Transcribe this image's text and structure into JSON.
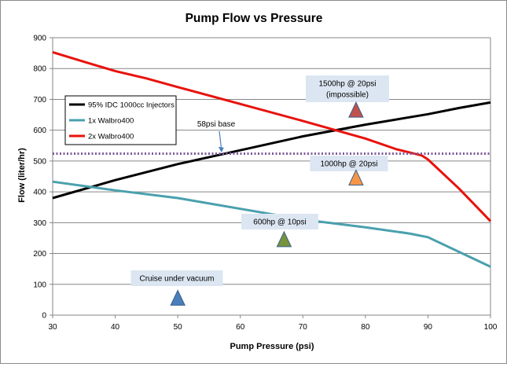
{
  "chart_data": {
    "type": "line",
    "title": "Pump Flow vs Pressure",
    "xlabel": "Pump Pressure (psi)",
    "ylabel": "Flow (liter/hr)",
    "xlim": [
      30,
      100
    ],
    "ylim": [
      0,
      900
    ],
    "x_ticks": [
      "30",
      "40",
      "50",
      "60",
      "70",
      "80",
      "90",
      "100"
    ],
    "y_ticks": [
      "0",
      "100",
      "200",
      "300",
      "400",
      "500",
      "600",
      "700",
      "800",
      "900"
    ],
    "grid": true,
    "legend_position": "top-left",
    "series": [
      {
        "name": "95% IDC 1000cc Injectors",
        "color": "#000000",
        "points": [
          [
            30,
            380
          ],
          [
            40,
            438
          ],
          [
            50,
            490
          ],
          [
            60,
            535
          ],
          [
            70,
            580
          ],
          [
            80,
            618
          ],
          [
            90,
            652
          ],
          [
            95,
            672
          ],
          [
            100,
            690
          ]
        ]
      },
      {
        "name": "1x Walbro400",
        "color": "#4aa0ad",
        "points": [
          [
            30,
            433
          ],
          [
            40,
            405
          ],
          [
            50,
            380
          ],
          [
            60,
            345
          ],
          [
            70,
            310
          ],
          [
            80,
            285
          ],
          [
            87,
            265
          ],
          [
            90,
            253
          ],
          [
            95,
            205
          ],
          [
            100,
            157
          ]
        ]
      },
      {
        "name": "2x Walbro400",
        "color": "#e8120c",
        "points": [
          [
            30,
            853
          ],
          [
            35,
            822
          ],
          [
            40,
            792
          ],
          [
            45,
            768
          ],
          [
            50,
            740
          ],
          [
            60,
            685
          ],
          [
            70,
            630
          ],
          [
            80,
            573
          ],
          [
            85,
            538
          ],
          [
            89,
            518
          ],
          [
            90,
            505
          ],
          [
            95,
            410
          ],
          [
            100,
            305
          ]
        ]
      }
    ],
    "reference_line": {
      "y": 524,
      "color": "#7e5a9a",
      "style": "dotted"
    },
    "annotations": [
      {
        "text": "58psi base",
        "x": 58,
        "y": 580,
        "arrow_to": [
          57,
          528
        ]
      },
      {
        "text": "Cruise under vacuum",
        "lines": [
          "Cruise under vacuum"
        ],
        "marker": {
          "x": 50,
          "y": 55,
          "color": "#4a7ebb"
        }
      },
      {
        "text": "600hp @ 10psi",
        "lines": [
          "600hp @ 10psi"
        ],
        "marker": {
          "x": 67,
          "y": 245,
          "color": "#77933c"
        }
      },
      {
        "text": "1000hp @ 20psi",
        "lines": [
          "1000hp @ 20psi"
        ],
        "marker": {
          "x": 78.5,
          "y": 445,
          "color": "#f79646"
        }
      },
      {
        "text": "1500hp @ 20psi (impossible)",
        "lines": [
          "1500hp @ 20psi",
          "(impossible)"
        ],
        "marker": {
          "x": 78.5,
          "y": 665,
          "color": "#c0504d"
        }
      }
    ]
  }
}
